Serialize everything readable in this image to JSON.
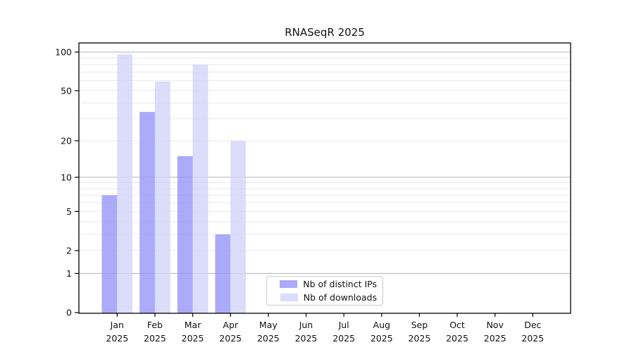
{
  "title": "RNASeqR 2025",
  "chart_data": {
    "type": "bar",
    "title": "RNASeqR 2025",
    "scale": "log1p",
    "categories": [
      "Jan",
      "Feb",
      "Mar",
      "Apr",
      "May",
      "Jun",
      "Jul",
      "Aug",
      "Sep",
      "Oct",
      "Nov",
      "Dec"
    ],
    "x_sublabel": "2025",
    "series": [
      {
        "name": "Nb of distinct IPs",
        "color": "#9898f8",
        "values": [
          7,
          34,
          15,
          3,
          null,
          null,
          null,
          null,
          null,
          null,
          null,
          null
        ]
      },
      {
        "name": "Nb of downloads",
        "color": "#d4d4fa",
        "values": [
          96,
          59,
          80,
          20,
          null,
          null,
          null,
          null,
          null,
          null,
          null,
          null
        ]
      }
    ],
    "yticks": [
      0,
      1,
      2,
      5,
      10,
      20,
      50,
      100
    ],
    "ylim": [
      0,
      115
    ],
    "grid": {
      "major": [
        1,
        10,
        100
      ],
      "minor": [
        2,
        3,
        4,
        5,
        6,
        7,
        8,
        9,
        20,
        30,
        40,
        50,
        60,
        70,
        80,
        90
      ]
    },
    "legend_position": "bottom-center-inside"
  },
  "colors": {
    "background": "#ffffff",
    "axis": "#000000",
    "grid_major": "#b3b3b3",
    "grid_minor": "#e9e9e9",
    "text": "#111111",
    "bar_opacity": "0.82"
  }
}
